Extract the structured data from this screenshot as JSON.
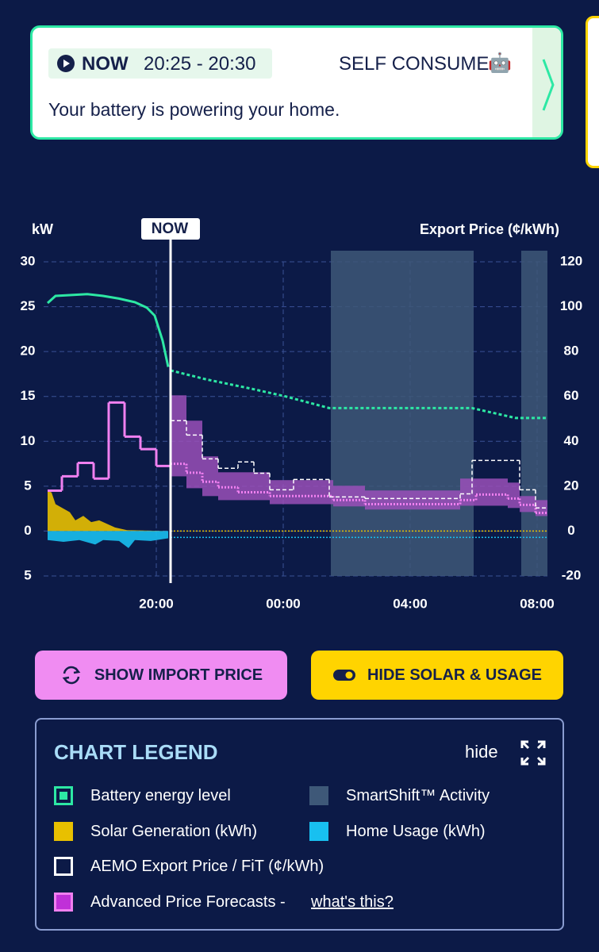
{
  "status_card": {
    "now": "NOW",
    "time_range": "20:25 - 20:30",
    "mode": "SELF CONSUME",
    "mode_icon": "🤖",
    "message": "Your battery is powering your home."
  },
  "buttons": {
    "import_price": "SHOW IMPORT PRICE",
    "solar_usage": "HIDE SOLAR & USAGE"
  },
  "legend": {
    "title": "CHART LEGEND",
    "hide": "hide",
    "link": "what's this?"
  },
  "chart_data": {
    "type": "line",
    "y_label": "kW",
    "y2_label": "Export Price (¢/kWh)",
    "now": {
      "label": "NOW",
      "x": 20.45
    },
    "xlim": [
      16.575,
      32.325
    ],
    "xticks": [
      {
        "value": 20,
        "label": "20:00"
      },
      {
        "value": 24,
        "label": "00:00"
      },
      {
        "value": 28,
        "label": "04:00"
      },
      {
        "value": 32,
        "label": "08:00"
      }
    ],
    "ylim": [
      -5,
      30
    ],
    "yticks": [
      30,
      25,
      20,
      15,
      10,
      5,
      0,
      {
        "value": -5,
        "label": "5"
      }
    ],
    "y2lim": [
      -20,
      120
    ],
    "y2ticks": [
      120,
      100,
      80,
      60,
      40,
      20,
      0,
      -20
    ],
    "grid": true,
    "series": [
      {
        "name": "Battery energy level",
        "type": "line",
        "color": "#2de8a4",
        "x": [
          16.575,
          16.825,
          17.325,
          17.825,
          18.325,
          18.825,
          19.325,
          19.7,
          19.95,
          20.2,
          20.375,
          20.45,
          21.575,
          23.075,
          24.075,
          25.45,
          29.95,
          31.325,
          32.325
        ],
        "values": [
          25.4,
          26.2,
          26.3,
          26.4,
          26.2,
          25.9,
          25.5,
          24.9,
          24.0,
          21.2,
          18.3,
          17.9,
          16.9,
          15.8,
          15.0,
          13.7,
          13.7,
          12.6,
          12.6
        ]
      },
      {
        "name": "SmartShift™ Activity",
        "type": "span",
        "color": "#3e5878",
        "ranges": [
          [
            25.5,
            30
          ],
          [
            31.5,
            32.325
          ]
        ]
      },
      {
        "name": "Solar Generation (kWh)",
        "type": "area",
        "color": "#e8c000",
        "x": [
          16.575,
          16.7,
          16.825,
          17.025,
          17.275,
          17.45,
          17.7,
          17.95,
          18.2,
          18.45,
          18.7,
          19.075,
          20.375
        ],
        "values": [
          4.5,
          4.3,
          3.0,
          2.6,
          2.1,
          1.2,
          1.7,
          1.0,
          1.2,
          0.8,
          0.4,
          0.1,
          0
        ]
      },
      {
        "name": "Home Usage (kWh)",
        "type": "area",
        "color": "#18c0f0",
        "x": [
          16.575,
          17.075,
          17.575,
          18.075,
          18.325,
          18.825,
          19.125,
          19.325,
          19.825,
          20.375
        ],
        "values": [
          -1.0,
          -1.2,
          -1.0,
          -1.5,
          -1.0,
          -1.1,
          -1.9,
          -1.0,
          -1.1,
          -0.8
        ]
      },
      {
        "name": "AEMO Export Price / FiT (¢/kWh)",
        "type": "step",
        "axis": "y2",
        "color": "#ffffff",
        "x": [
          20.45,
          20.95,
          21.45,
          21.95,
          22.575,
          23.075,
          23.575,
          24.325,
          25.45,
          26.575,
          29.575,
          29.95,
          31.45,
          31.95
        ],
        "values": [
          49.2,
          42.8,
          32.2,
          28,
          30.8,
          25.8,
          18.4,
          23,
          15.2,
          14.5,
          16.6,
          31.5,
          18.4,
          10.3
        ]
      },
      {
        "name": "Advanced Price Forecasts - ",
        "type": "step",
        "axis": "y2",
        "color": "#f080f0",
        "x": [
          16.575,
          17.025,
          17.525,
          18.025,
          18.5,
          19.0,
          19.5,
          20.0,
          20.45,
          20.95,
          21.45,
          21.95,
          22.575,
          23.575,
          25.575,
          26.575,
          29.575,
          30.075,
          31.075,
          31.45,
          31.95
        ],
        "values": [
          18,
          24.4,
          30.4,
          23.4,
          57.3,
          42.1,
          36.5,
          29,
          30,
          26,
          22,
          19.5,
          17.3,
          15.6,
          13.8,
          12,
          13.8,
          16.3,
          14.5,
          11.7,
          8.1
        ],
        "band": {
          "color": "#9a50b8",
          "x": [
            20.45,
            20.95,
            21.45,
            21.95,
            23.575,
            25.575,
            26.575,
            29.575,
            31.075,
            31.45,
            31.95
          ],
          "low": [
            24.4,
            19.1,
            15.6,
            13.8,
            12,
            11,
            9.6,
            11.3,
            10.3,
            8.5,
            6.7
          ],
          "high": [
            60.5,
            49.2,
            33.3,
            26.2,
            22.7,
            20.2,
            18.1,
            23.4,
            21.6,
            15.6,
            13.8
          ]
        }
      }
    ]
  }
}
